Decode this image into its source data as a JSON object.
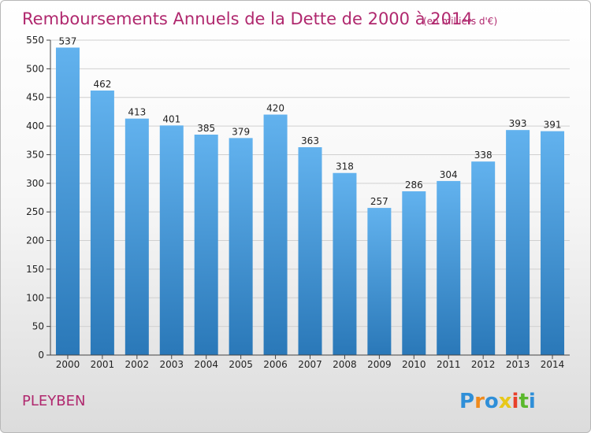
{
  "chart_data": {
    "type": "bar",
    "title": "Remboursements Annuels de la Dette de 2000 à 2014",
    "subtitle": "(en milliers d'€)",
    "categories": [
      "2000",
      "2001",
      "2002",
      "2003",
      "2004",
      "2005",
      "2006",
      "2007",
      "2008",
      "2009",
      "2010",
      "2011",
      "2012",
      "2013",
      "2014"
    ],
    "values": [
      537,
      462,
      413,
      401,
      385,
      379,
      420,
      363,
      318,
      257,
      286,
      304,
      338,
      393,
      391
    ],
    "ylim": [
      0,
      550
    ],
    "yticks": [
      0,
      50,
      100,
      150,
      200,
      250,
      300,
      350,
      400,
      450,
      500,
      550
    ],
    "grid": true,
    "xlabel": "",
    "ylabel": "",
    "bar_color_top": "#62b2ee",
    "bar_color_bottom": "#2a78b8"
  },
  "commune": "PLEYBEN",
  "logo": {
    "letters": [
      "P",
      "r",
      "o",
      "x",
      "i",
      "t",
      "i"
    ],
    "colors": [
      "#2f8fd8",
      "#f08a1c",
      "#2f8fd8",
      "#e8c81a",
      "#e8402a",
      "#5ab82c",
      "#2f8fd8"
    ]
  }
}
